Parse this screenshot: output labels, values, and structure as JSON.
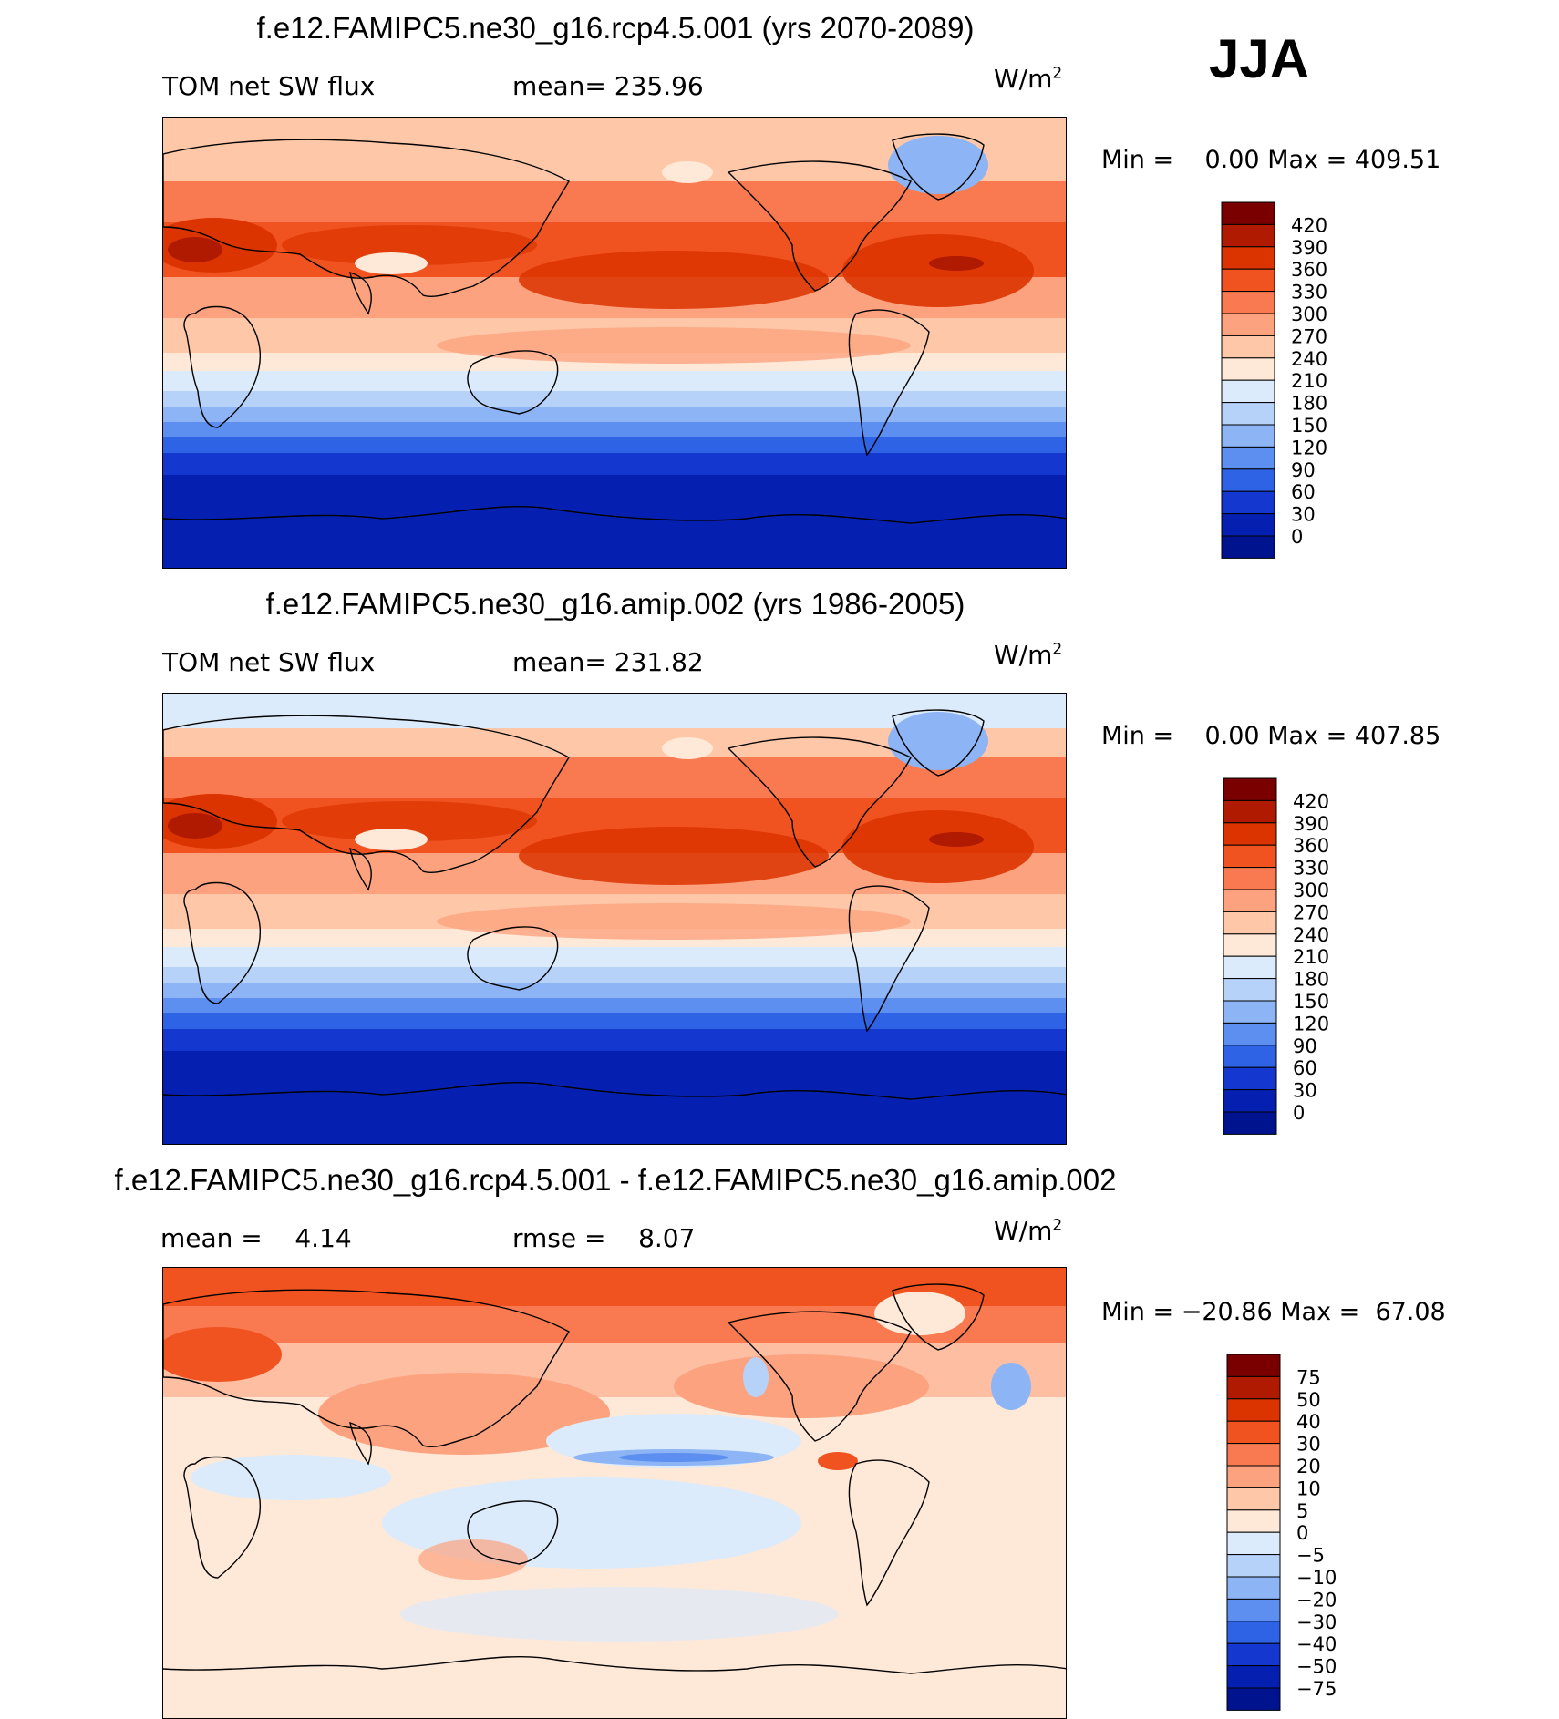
{
  "season": "JJA",
  "panels": [
    {
      "id": "rcp",
      "title": "f.e12.FAMIPC5.ne30_g16.rcp4.5.001 (yrs 2070-2089)",
      "left_label": "TOM net SW flux",
      "center_label": "mean= 235.96",
      "units_base": "W/m",
      "units_exp": "2",
      "min_label": "Min =",
      "min_value": "0.00",
      "max_label": "Max =",
      "max_value": "409.51",
      "colorbar": [
        "420",
        "390",
        "360",
        "330",
        "300",
        "270",
        "240",
        "210",
        "180",
        "150",
        "120",
        "90",
        "60",
        "30",
        "0"
      ],
      "colors": [
        "#7a0000",
        "#b01a00",
        "#dc3400",
        "#f05220",
        "#f97a50",
        "#fca27e",
        "#fdc7a8",
        "#fee8d8",
        "#dcebfb",
        "#b7d2f8",
        "#8db5f5",
        "#5c8fef",
        "#2f63e6",
        "#1438cf",
        "#0520b0",
        "#00138f"
      ]
    },
    {
      "id": "amip",
      "title": "f.e12.FAMIPC5.ne30_g16.amip.002 (yrs 1986-2005)",
      "left_label": "TOM net SW flux",
      "center_label": "mean= 231.82",
      "units_base": "W/m",
      "units_exp": "2",
      "min_label": "Min =",
      "min_value": "0.00",
      "max_label": "Max =",
      "max_value": "407.85",
      "colorbar": [
        "420",
        "390",
        "360",
        "330",
        "300",
        "270",
        "240",
        "210",
        "180",
        "150",
        "120",
        "90",
        "60",
        "30",
        "0"
      ],
      "colors": [
        "#7a0000",
        "#b01a00",
        "#dc3400",
        "#f05220",
        "#f97a50",
        "#fca27e",
        "#fdc7a8",
        "#fee8d8",
        "#dcebfb",
        "#b7d2f8",
        "#8db5f5",
        "#5c8fef",
        "#2f63e6",
        "#1438cf",
        "#0520b0",
        "#00138f"
      ]
    },
    {
      "id": "diff",
      "title": "f.e12.FAMIPC5.ne30_g16.rcp4.5.001 - f.e12.FAMIPC5.ne30_g16.amip.002",
      "left_label": "mean =    4.14",
      "center_label": "rmse =    8.07",
      "units_base": "W/m",
      "units_exp": "2",
      "min_label": "Min =",
      "min_value": "−20.86",
      "max_label": "Max =",
      "max_value": "67.08",
      "colorbar": [
        "75",
        "50",
        "40",
        "30",
        "20",
        "10",
        "5",
        "0",
        "−5",
        "−10",
        "−20",
        "−30",
        "−40",
        "−50",
        "−75"
      ],
      "colors": [
        "#7a0000",
        "#b01a00",
        "#dc3400",
        "#f05220",
        "#f97a50",
        "#fca27e",
        "#fdc7a8",
        "#fee8d8",
        "#dcebfb",
        "#b7d2f8",
        "#8db5f5",
        "#5c8fef",
        "#2f63e6",
        "#1438cf",
        "#0520b0",
        "#00138f"
      ]
    }
  ]
}
